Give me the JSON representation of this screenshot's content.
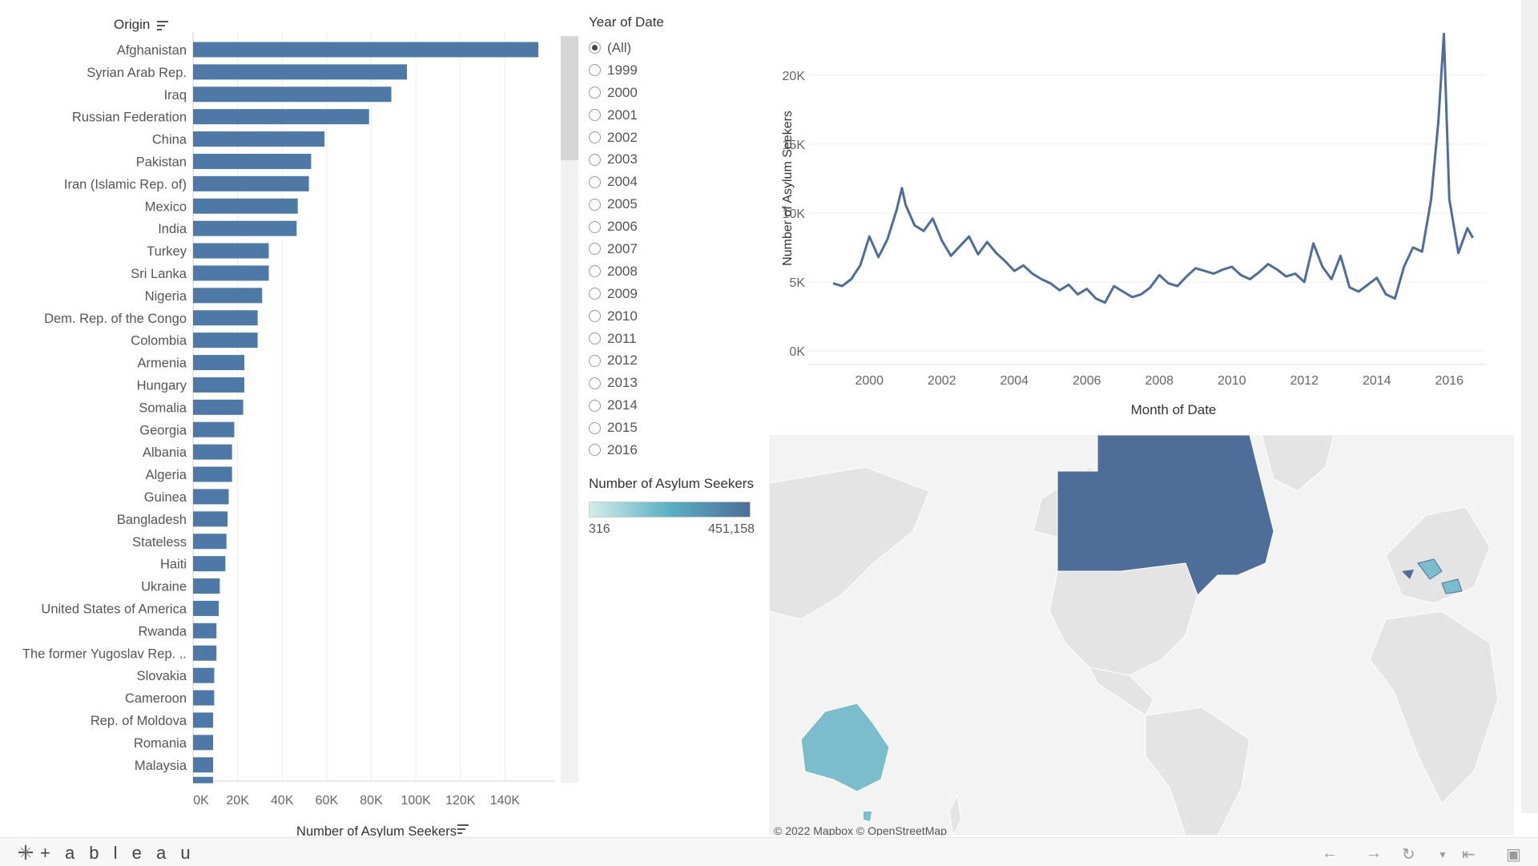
{
  "bar_chart": {
    "header_label": "Origin",
    "xlabel": "Number of Asylum Seekers",
    "chart_data": {
      "type": "bar",
      "orientation": "horizontal",
      "categories": [
        "Afghanistan",
        "Syrian Arab Rep.",
        "Iraq",
        "Russian Federation",
        "China",
        "Pakistan",
        "Iran (Islamic Rep. of)",
        "Mexico",
        "India",
        "Turkey",
        "Sri Lanka",
        "Nigeria",
        "Dem. Rep. of the Congo",
        "Colombia",
        "Armenia",
        "Hungary",
        "Somalia",
        "Georgia",
        "Albania",
        "Algeria",
        "Guinea",
        "Bangladesh",
        "Stateless",
        "Haiti",
        "Ukraine",
        "United States of America",
        "Rwanda",
        "The former Yugoslav Rep. ..",
        "Slovakia",
        "Cameroon",
        "Rep. of Moldova",
        "Romania",
        "Malaysia"
      ],
      "values": [
        155000,
        96000,
        89000,
        79000,
        59000,
        53000,
        52000,
        47000,
        46500,
        34000,
        34000,
        31000,
        29000,
        29000,
        23000,
        23000,
        22500,
        18500,
        17500,
        17500,
        16000,
        15500,
        15000,
        14500,
        12000,
        11500,
        10500,
        10500,
        9500,
        9500,
        9000,
        9000,
        9000
      ],
      "xlim": [
        0,
        160000
      ],
      "xticks": [
        "0K",
        "20K",
        "40K",
        "60K",
        "80K",
        "100K",
        "120K",
        "140K"
      ],
      "xtick_values": [
        0,
        20000,
        40000,
        60000,
        80000,
        100000,
        120000,
        140000
      ],
      "grid": true,
      "color": "#4e79a7"
    }
  },
  "year_filter": {
    "title": "Year of Date",
    "selected": "(All)",
    "options": [
      "(All)",
      "1999",
      "2000",
      "2001",
      "2002",
      "2003",
      "2004",
      "2005",
      "2006",
      "2007",
      "2008",
      "2009",
      "2010",
      "2011",
      "2012",
      "2013",
      "2014",
      "2015",
      "2016"
    ]
  },
  "legend": {
    "title": "Number of Asylum Seekers",
    "min_label": "316",
    "max_label": "451,158",
    "colors": [
      "#d4ecec",
      "#5aafc4",
      "#4e6e99"
    ]
  },
  "line_chart": {
    "chart_data": {
      "type": "line",
      "xlabel": "Month of Date",
      "ylabel": "Number of Asylum Seekers",
      "xlim": [
        1999.0,
        2016.9
      ],
      "ylim": [
        0,
        24000
      ],
      "xticks": [
        "2000",
        "2002",
        "2004",
        "2006",
        "2008",
        "2010",
        "2012",
        "2014",
        "2016"
      ],
      "xtick_values": [
        2000,
        2002,
        2004,
        2006,
        2008,
        2010,
        2012,
        2014,
        2016
      ],
      "yticks": [
        "0K",
        "5K",
        "10K",
        "15K",
        "20K"
      ],
      "ytick_values": [
        0,
        5000,
        10000,
        15000,
        20000
      ],
      "color": "#4e6e99",
      "x": [
        1999.0,
        1999.25,
        1999.5,
        1999.75,
        2000.0,
        2000.25,
        2000.5,
        2000.75,
        2000.9,
        2001.0,
        2001.25,
        2001.5,
        2001.75,
        2002.0,
        2002.25,
        2002.5,
        2002.75,
        2003.0,
        2003.25,
        2003.5,
        2003.75,
        2004.0,
        2004.25,
        2004.5,
        2004.75,
        2005.0,
        2005.25,
        2005.5,
        2005.75,
        2006.0,
        2006.25,
        2006.5,
        2006.75,
        2007.0,
        2007.25,
        2007.5,
        2007.75,
        2008.0,
        2008.25,
        2008.5,
        2008.75,
        2009.0,
        2009.25,
        2009.5,
        2009.75,
        2010.0,
        2010.25,
        2010.5,
        2010.75,
        2011.0,
        2011.25,
        2011.5,
        2011.75,
        2012.0,
        2012.25,
        2012.5,
        2012.75,
        2013.0,
        2013.25,
        2013.5,
        2013.75,
        2014.0,
        2014.25,
        2014.5,
        2014.75,
        2015.0,
        2015.25,
        2015.5,
        2015.7,
        2015.85,
        2016.0,
        2016.25,
        2016.5,
        2016.65
      ],
      "y": [
        4900,
        4700,
        5200,
        6200,
        8300,
        6800,
        8100,
        10200,
        11800,
        10600,
        9100,
        8700,
        9600,
        8000,
        6900,
        7600,
        8300,
        7000,
        7900,
        7100,
        6500,
        5800,
        6200,
        5600,
        5200,
        4900,
        4400,
        4800,
        4100,
        4500,
        3800,
        3500,
        4700,
        4300,
        3900,
        4100,
        4600,
        5500,
        4900,
        4700,
        5400,
        6000,
        5800,
        5600,
        5900,
        6100,
        5500,
        5200,
        5700,
        6300,
        5900,
        5400,
        5600,
        5000,
        7800,
        6100,
        5200,
        6900,
        4600,
        4300,
        4800,
        5300,
        4100,
        3800,
        6100,
        7500,
        7200,
        11000,
        16700,
        23000,
        11000,
        7100,
        8900,
        8200
      ]
    }
  },
  "map": {
    "attribution": "© 2022 Mapbox © OpenStreetMap",
    "land_color": "#e4e4e4",
    "ocean_color": "#f3f3f3",
    "highlight_dark": "#4e6e99",
    "highlight_light": "#7bbdcc"
  },
  "footer": {
    "logo": "+ a b l e a u"
  },
  "icons": {
    "sort": "sort-icon",
    "back": "arrow-left-icon",
    "forward": "arrow-right-icon",
    "revert": "revert-icon",
    "first": "first-icon",
    "fullscreen": "fullscreen-icon"
  }
}
